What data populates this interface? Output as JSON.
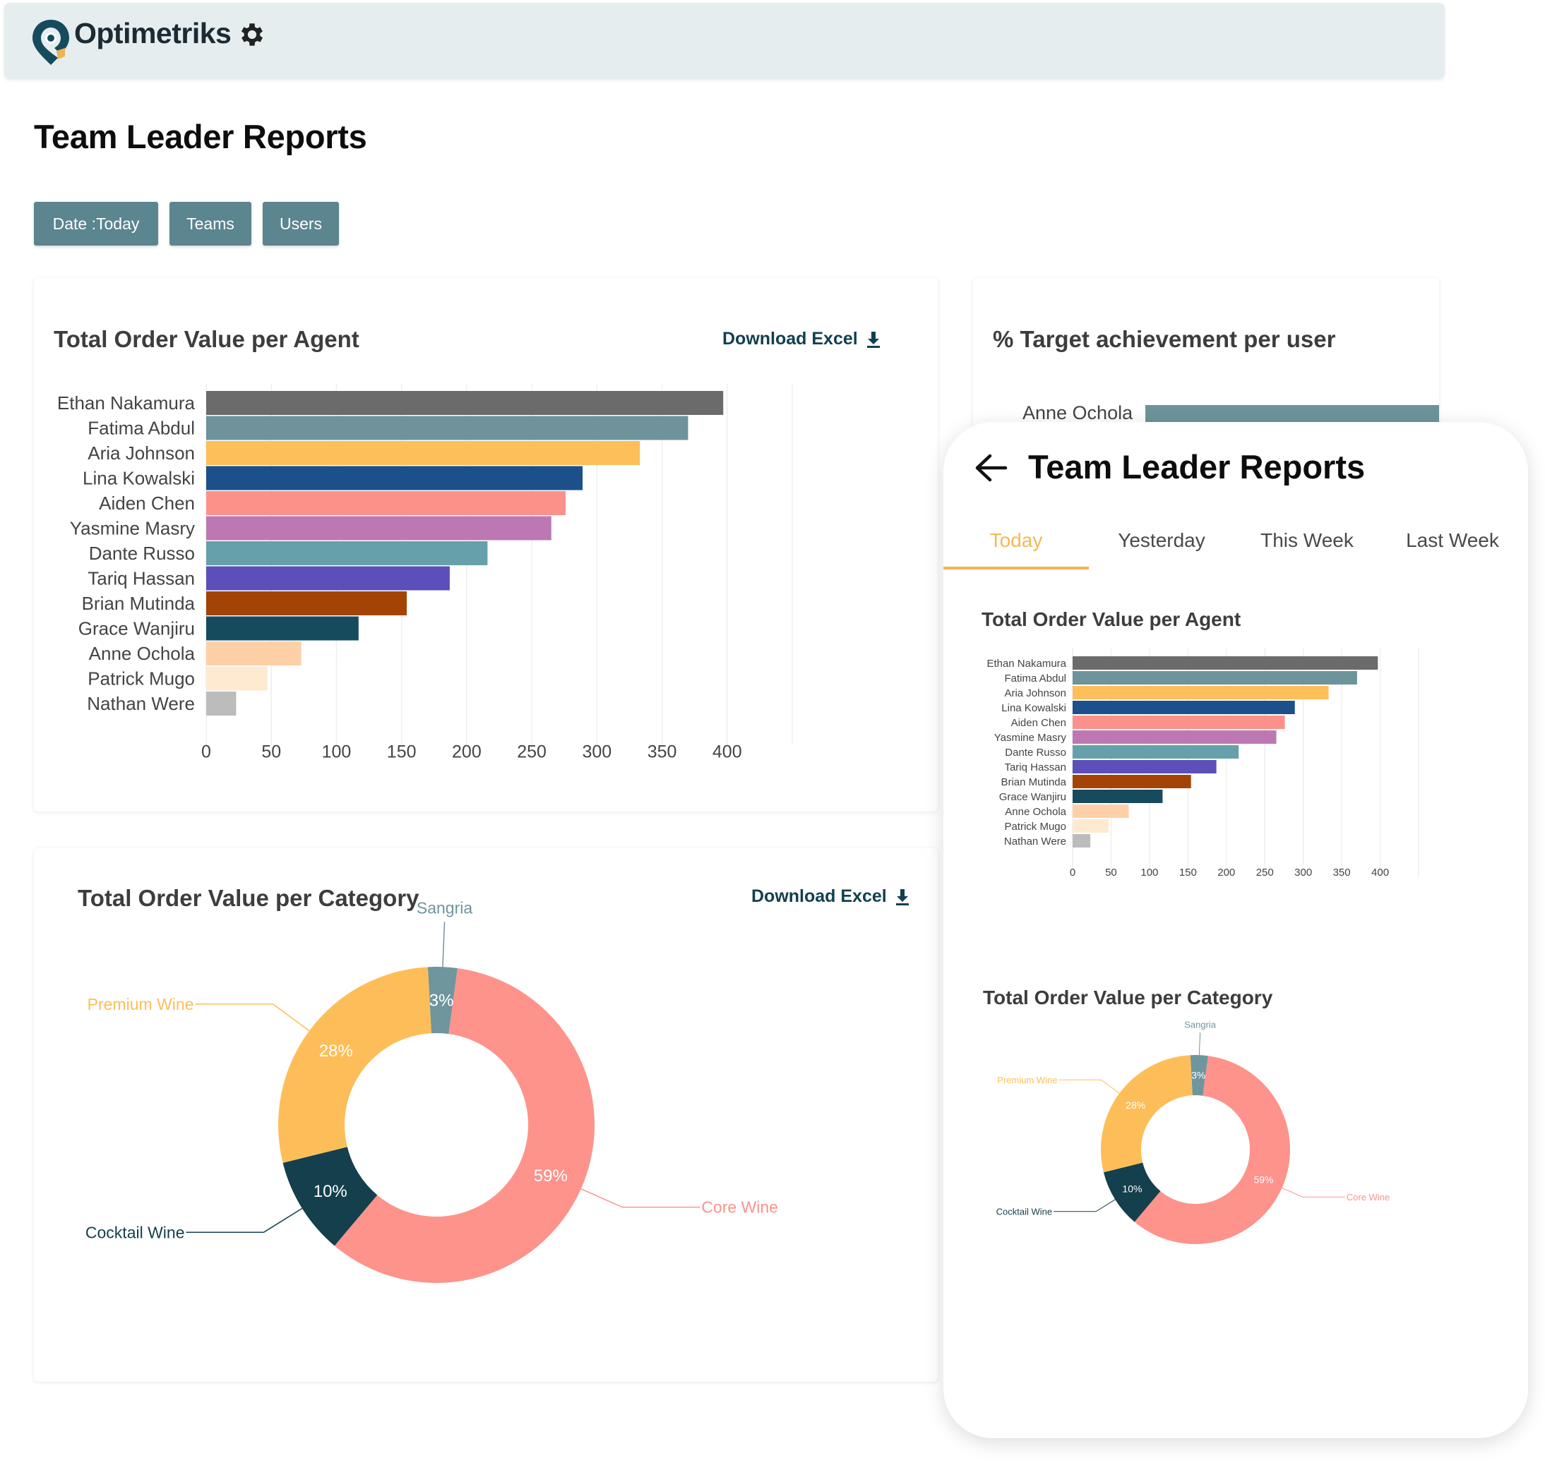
{
  "app": {
    "brand": "Optimetriks"
  },
  "page": {
    "title": "Team Leader Reports"
  },
  "filters": [
    {
      "label": "Date :Today"
    },
    {
      "label": "Teams"
    },
    {
      "label": "Users"
    }
  ],
  "order_card": {
    "title": "Total Order Value per Agent",
    "download_label": "Download Excel"
  },
  "category_card": {
    "title": "Total Order Value per Category",
    "download_label": "Download Excel"
  },
  "target_card": {
    "title": "% Target achievement per user",
    "first_row_label": "Anne Ochola"
  },
  "phone": {
    "title": "Team Leader Reports",
    "tabs": [
      {
        "label": "Today",
        "active": true
      },
      {
        "label": "Yesterday",
        "active": false
      },
      {
        "label": "This Week",
        "active": false
      },
      {
        "label": "Last Week",
        "active": false
      }
    ],
    "order_title": "Total Order Value per Agent",
    "category_title": "Total Order Value per Category"
  },
  "colors": {
    "accent": "#f0b354",
    "button": "#5b858f",
    "link": "#123f4f"
  },
  "chart_data": [
    {
      "type": "bar",
      "orientation": "horizontal",
      "title": "Total Order Value per Agent",
      "categories": [
        "Ethan Nakamura",
        "Fatima Abdul",
        "Aria Johnson",
        "Lina Kowalski",
        "Aiden Chen",
        "Yasmine Masry",
        "Dante Russo",
        "Tariq Hassan",
        "Brian Mutinda",
        "Grace Wanjiru",
        "Anne Ochola",
        "Patrick Mugo",
        "Nathan Were"
      ],
      "values": [
        397,
        370,
        333,
        289,
        276,
        265,
        216,
        187,
        154,
        117,
        73,
        47,
        23
      ],
      "colors": [
        "#6b6b6b",
        "#6d939b",
        "#fcbf59",
        "#1b508a",
        "#fc918a",
        "#bd78b3",
        "#66a0aa",
        "#5c4fb9",
        "#a34406",
        "#164b5e",
        "#fed0a8",
        "#feead0",
        "#bcbcbc"
      ],
      "xticks": [
        0,
        50,
        100,
        150,
        200,
        250,
        300,
        350,
        400
      ],
      "xlim": [
        0,
        450
      ],
      "grid": true
    },
    {
      "type": "pie",
      "donut": true,
      "title": "Total Order Value per Category",
      "labels": [
        "Sangria",
        "Core Wine",
        "Cocktail Wine",
        "Premium Wine"
      ],
      "values": [
        3,
        59,
        10,
        28
      ],
      "display": [
        "3%",
        "59%",
        "10%",
        "28%"
      ],
      "colors": [
        "#6f959d",
        "#fd938b",
        "#143f4c",
        "#fdbe59"
      ]
    }
  ]
}
